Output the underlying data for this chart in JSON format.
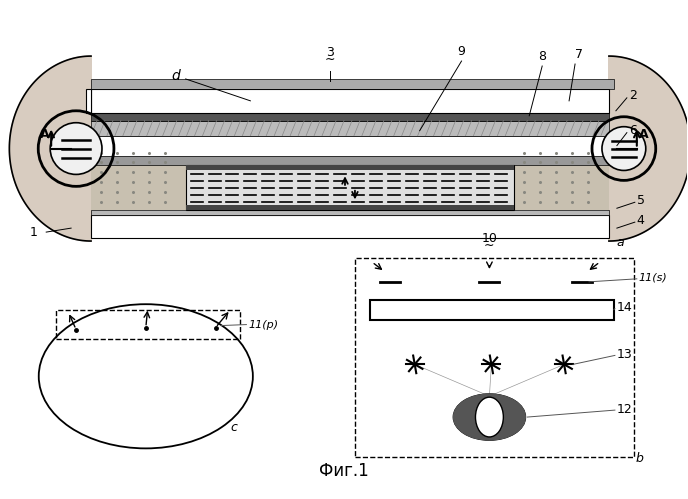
{
  "title": "Фиг.1",
  "bg_color": "#ffffff",
  "fig_width": 6.88,
  "fig_height": 4.99,
  "labels": {
    "a": "a",
    "b": "b",
    "c": "c",
    "d": "d",
    "num1": "1",
    "num2": "2",
    "num3": "3",
    "num4": "4",
    "num5": "5",
    "num6": "6",
    "num7": "7",
    "num8": "8",
    "num9": "9",
    "num10": "10",
    "num11p": "11(р)",
    "num11s": "11(ѕ)",
    "num12": "12",
    "num13": "13",
    "num14": "14",
    "A": "A"
  }
}
